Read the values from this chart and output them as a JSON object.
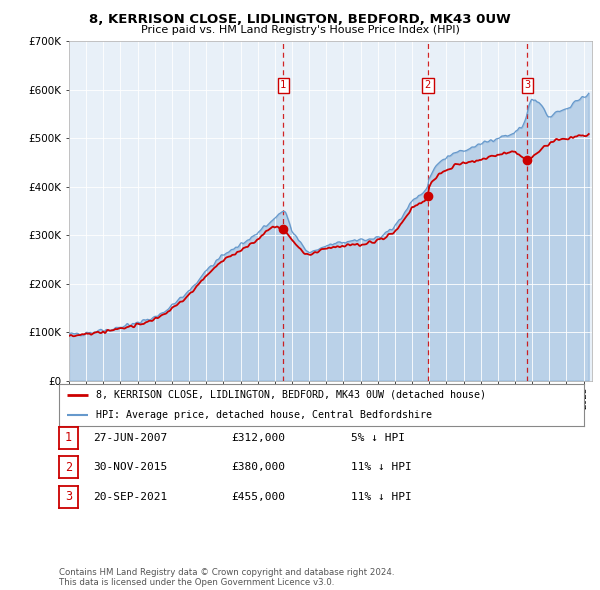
{
  "title": "8, KERRISON CLOSE, LIDLINGTON, BEDFORD, MK43 0UW",
  "subtitle": "Price paid vs. HM Land Registry's House Price Index (HPI)",
  "background_color": "#ffffff",
  "plot_bg_color": "#e8f0f8",
  "fill_color": "#c8ddf0",
  "ylim": [
    0,
    700000
  ],
  "yticks": [
    0,
    100000,
    200000,
    300000,
    400000,
    500000,
    600000,
    700000
  ],
  "ytick_labels": [
    "£0",
    "£100K",
    "£200K",
    "£300K",
    "£400K",
    "£500K",
    "£600K",
    "£700K"
  ],
  "xlim_start": 1995.0,
  "xlim_end": 2025.5,
  "sale_dates": [
    2007.49,
    2015.92,
    2021.72
  ],
  "sale_prices": [
    312000,
    380000,
    455000
  ],
  "sale_labels": [
    "1",
    "2",
    "3"
  ],
  "red_line_color": "#cc0000",
  "blue_line_color": "#6699cc",
  "sale_marker_color": "#cc0000",
  "vline_color": "#cc0000",
  "legend_label_red": "8, KERRISON CLOSE, LIDLINGTON, BEDFORD, MK43 0UW (detached house)",
  "legend_label_blue": "HPI: Average price, detached house, Central Bedfordshire",
  "table_rows": [
    {
      "num": "1",
      "date": "27-JUN-2007",
      "price": "£312,000",
      "hpi": "5% ↓ HPI"
    },
    {
      "num": "2",
      "date": "30-NOV-2015",
      "price": "£380,000",
      "hpi": "11% ↓ HPI"
    },
    {
      "num": "3",
      "date": "20-SEP-2021",
      "price": "£455,000",
      "hpi": "11% ↓ HPI"
    }
  ],
  "footer_text": "Contains HM Land Registry data © Crown copyright and database right 2024.\nThis data is licensed under the Open Government Licence v3.0.",
  "grid_color": "#ffffff"
}
